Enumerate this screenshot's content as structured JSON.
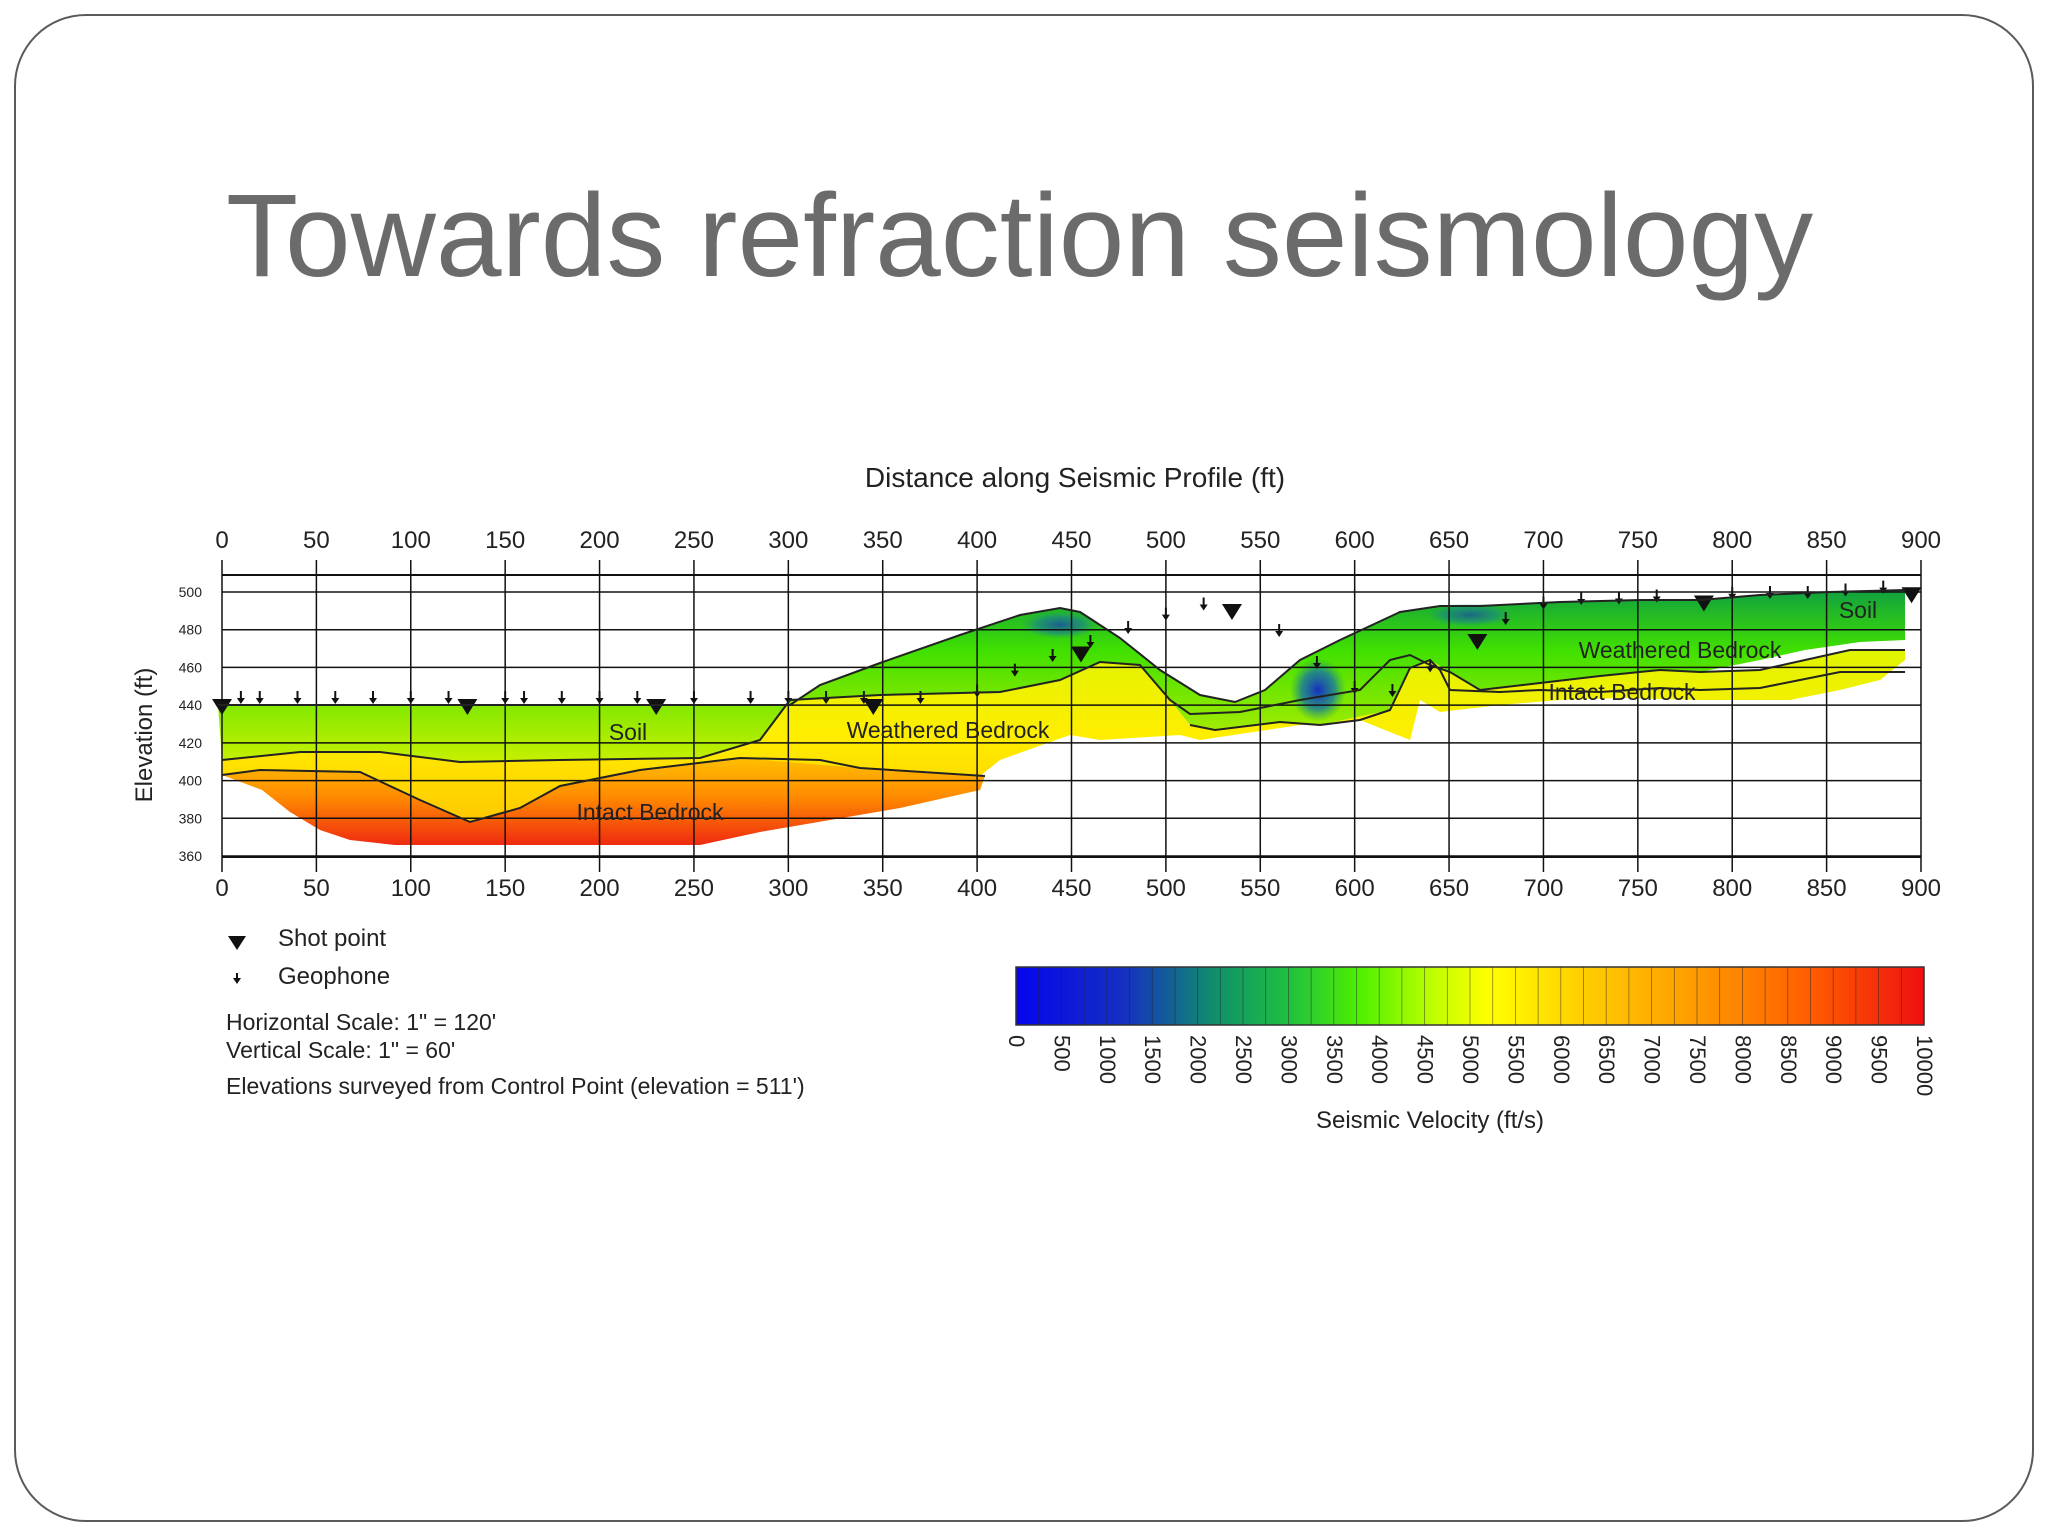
{
  "slide": {
    "title": "Towards refraction seismology"
  },
  "profile": {
    "top_axis_title": "Distance along Seismic Profile (ft)",
    "y_axis_title": "Elevation (ft)",
    "x_ticks": [
      "0",
      "50",
      "100",
      "150",
      "200",
      "250",
      "300",
      "350",
      "400",
      "450",
      "500",
      "550",
      "600",
      "650",
      "700",
      "750",
      "800",
      "850",
      "900"
    ],
    "y_ticks": [
      "500",
      "480",
      "460",
      "440",
      "420",
      "400",
      "380",
      "360"
    ],
    "labels": {
      "soil_left": "Soil",
      "weathered_left": "Weathered Bedrock",
      "intact_left": "Intact Bedrock",
      "soil_right": "Soil",
      "weathered_right": "Weathered Bedrock",
      "intact_right": "Intact Bedrock"
    },
    "shot_points_ft": [
      0,
      130,
      230,
      345,
      455,
      535,
      665,
      785,
      895
    ],
    "geophones_ft": [
      10,
      20,
      40,
      60,
      80,
      100,
      120,
      150,
      160,
      180,
      200,
      220,
      250,
      280,
      300,
      320,
      340,
      370,
      400,
      420,
      440,
      460,
      480,
      500,
      520,
      560,
      580,
      600,
      620,
      640,
      680,
      700,
      720,
      740,
      760,
      800,
      820,
      840,
      860,
      880
    ]
  },
  "legend": {
    "shot_point": "Shot point",
    "geophone": "Geophone",
    "horizontal_scale": "Horizontal Scale: 1\" = 120'",
    "vertical_scale": "Vertical Scale: 1\" = 60'",
    "elevations_note": "Elevations surveyed from Control Point (elevation = 511')"
  },
  "colorbar": {
    "title": "Seismic Velocity (ft/s)",
    "ticks": [
      "0",
      "500",
      "1000",
      "1500",
      "2000",
      "2500",
      "3000",
      "3500",
      "4000",
      "4500",
      "5000",
      "5500",
      "6000",
      "6500",
      "7000",
      "7500",
      "8000",
      "8500",
      "9000",
      "9500",
      "10000"
    ],
    "colors": {
      "low": "#1010e0",
      "mid_low": "#18a060",
      "mid": "#40e000",
      "mid_high": "#ffff00",
      "high_mid": "#ff9000",
      "high": "#ee1010"
    }
  }
}
